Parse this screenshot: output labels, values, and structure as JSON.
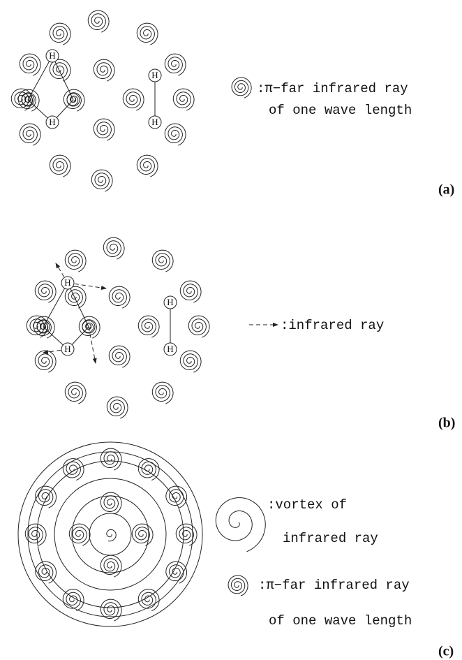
{
  "panels": [
    {
      "label": "(a)",
      "atoms": [
        "H",
        "H",
        "O",
        "O",
        "H",
        "H"
      ],
      "legend": [
        ":π−far infrared ray",
        "of one wave length"
      ]
    },
    {
      "label": "(b)",
      "atoms": [
        "H",
        "H",
        "O",
        "O",
        "H",
        "H"
      ],
      "legend": [
        ":infrared ray"
      ]
    },
    {
      "label": "(c)",
      "legend": [
        ":vortex of",
        "infrared ray",
        ":π−far infrared ray",
        "of one wave length"
      ]
    }
  ]
}
